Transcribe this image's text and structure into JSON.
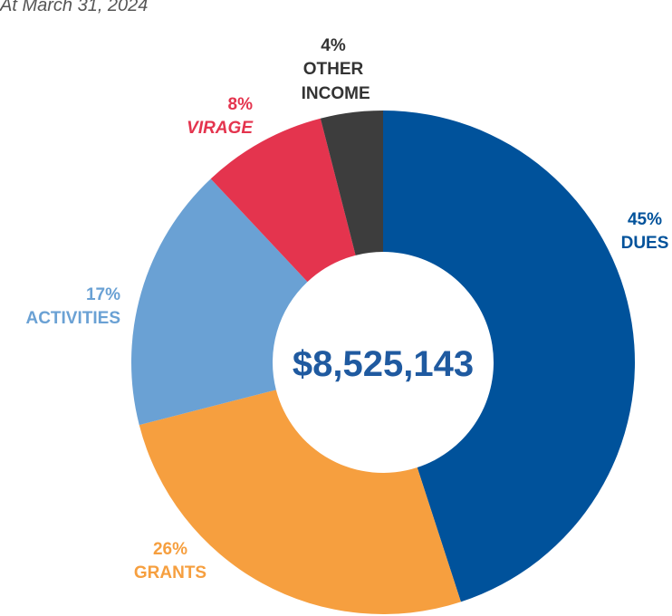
{
  "chart_data": {
    "type": "donut",
    "subtitle": "At March 31, 2024",
    "center_label": "$8,525,143",
    "categories": [
      "DUES",
      "GRANTS",
      "ACTIVITIES",
      "VIRAGE",
      "OTHER INCOME"
    ],
    "values": [
      45,
      26,
      17,
      8,
      4
    ],
    "value_labels": [
      "45%",
      "26%",
      "17%",
      "8%",
      "4%"
    ],
    "colors": [
      "#00529b",
      "#f69f3f",
      "#6aa1d4",
      "#e4344e",
      "#3d3d3d"
    ]
  }
}
